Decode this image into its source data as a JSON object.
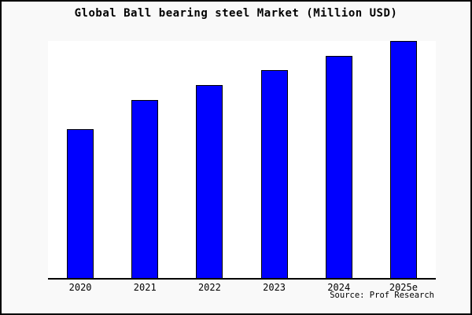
{
  "figure": {
    "background_color": "#f9f9f9",
    "plot_background_color": "#ffffff",
    "border_color": "#000000"
  },
  "chart_data": {
    "type": "bar",
    "title": "Global Ball bearing steel Market (Million USD)",
    "categories": [
      "2020",
      "2021",
      "2022",
      "2023",
      "2024",
      "2025e"
    ],
    "values": [
      62.8,
      75.1,
      81.4,
      87.7,
      93.7,
      100
    ],
    "values_note": "No y-axis or data labels are shown in the image; values are relative bar heights normalized to 2025e = 100",
    "xlabel": "",
    "ylabel": "",
    "ylim": [
      0,
      100
    ],
    "grid": false,
    "legend": false,
    "bar_color": "#0000ff",
    "bar_edge_color": "#000000",
    "source_label": "Source: Prof Research"
  }
}
